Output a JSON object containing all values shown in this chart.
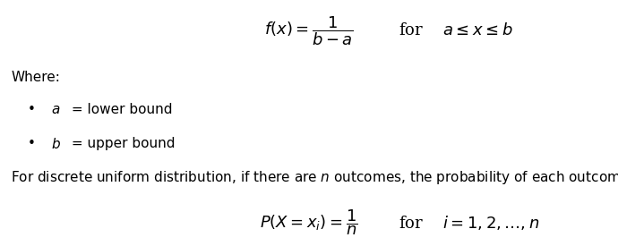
{
  "background_color": "#ffffff",
  "fig_width": 6.9,
  "fig_height": 2.75,
  "dpi": 100,
  "text_color": "#000000",
  "font_size_formula": 13,
  "font_size_text": 11,
  "font_size_where": 11,
  "formula1_left": "$f(x) = \\dfrac{1}{b-a}$",
  "formula1_right": "for $\\quad a \\leq x \\leq b$",
  "where_text": "Where:",
  "bullet_char": "•",
  "bullet1_italic": "$a$",
  "bullet1_rest": " = lower bound",
  "bullet2_italic": "$b$",
  "bullet2_rest": " = upper bound",
  "desc_line": "For discrete uniform distribution, if there are $n$ outcomes, the probability of each outcome is:",
  "formula2_left": "$P(X = x_i) = \\dfrac{1}{n}$",
  "formula2_right": "for $\\quad i = 1, 2, \\ldots, n$"
}
